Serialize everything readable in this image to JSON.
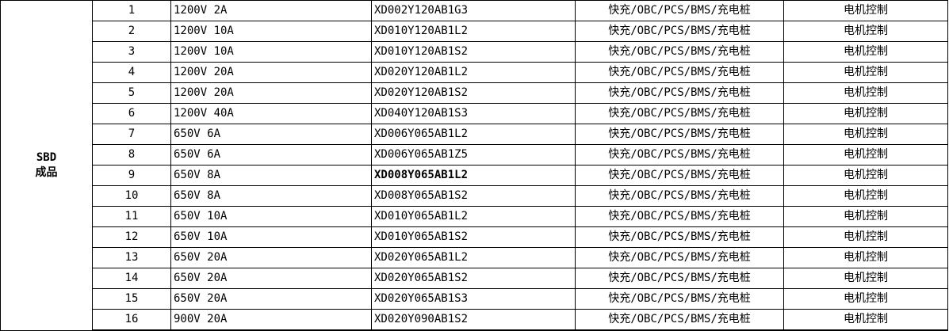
{
  "table": {
    "group": {
      "line1": "SBD",
      "line2": "成品"
    },
    "rows": [
      {
        "no": "1",
        "spec": "1200V 2A",
        "part": "XD002Y120AB1G3",
        "app": "快充/OBC/PCS/BMS/充电桩",
        "control": "电机控制",
        "part_bold": false
      },
      {
        "no": "2",
        "spec": "1200V 10A",
        "part": "XD010Y120AB1L2",
        "app": "快充/OBC/PCS/BMS/充电桩",
        "control": "电机控制",
        "part_bold": false
      },
      {
        "no": "3",
        "spec": "1200V 10A",
        "part": "XD010Y120AB1S2",
        "app": "快充/OBC/PCS/BMS/充电桩",
        "control": "电机控制",
        "part_bold": false
      },
      {
        "no": "4",
        "spec": "1200V 20A",
        "part": "XD020Y120AB1L2",
        "app": "快充/OBC/PCS/BMS/充电桩",
        "control": "电机控制",
        "part_bold": false
      },
      {
        "no": "5",
        "spec": "1200V 20A",
        "part": "XD020Y120AB1S2",
        "app": "快充/OBC/PCS/BMS/充电桩",
        "control": "电机控制",
        "part_bold": false
      },
      {
        "no": "6",
        "spec": "1200V 40A",
        "part": "XD040Y120AB1S3",
        "app": "快充/OBC/PCS/BMS/充电桩",
        "control": "电机控制",
        "part_bold": false
      },
      {
        "no": "7",
        "spec": "650V 6A",
        "part": "XD006Y065AB1L2",
        "app": "快充/OBC/PCS/BMS/充电桩",
        "control": "电机控制",
        "part_bold": false
      },
      {
        "no": "8",
        "spec": "650V 6A",
        "part": "XD006Y065AB1Z5",
        "app": "快充/OBC/PCS/BMS/充电桩",
        "control": "电机控制",
        "part_bold": false
      },
      {
        "no": "9",
        "spec": "650V 8A",
        "part": "XD008Y065AB1L2",
        "app": "快充/OBC/PCS/BMS/充电桩",
        "control": "电机控制",
        "part_bold": true
      },
      {
        "no": "10",
        "spec": "650V 8A",
        "part": "XD008Y065AB1S2",
        "app": "快充/OBC/PCS/BMS/充电桩",
        "control": "电机控制",
        "part_bold": false
      },
      {
        "no": "11",
        "spec": "650V 10A",
        "part": "XD010Y065AB1L2",
        "app": "快充/OBC/PCS/BMS/充电桩",
        "control": "电机控制",
        "part_bold": false
      },
      {
        "no": "12",
        "spec": "650V 10A",
        "part": "XD010Y065AB1S2",
        "app": "快充/OBC/PCS/BMS/充电桩",
        "control": "电机控制",
        "part_bold": false
      },
      {
        "no": "13",
        "spec": "650V 20A",
        "part": "XD020Y065AB1L2",
        "app": "快充/OBC/PCS/BMS/充电桩",
        "control": "电机控制",
        "part_bold": false
      },
      {
        "no": "14",
        "spec": "650V 20A",
        "part": "XD020Y065AB1S2",
        "app": "快充/OBC/PCS/BMS/充电桩",
        "control": "电机控制",
        "part_bold": false
      },
      {
        "no": "15",
        "spec": "650V 20A",
        "part": "XD020Y065AB1S3",
        "app": "快充/OBC/PCS/BMS/充电桩",
        "control": "电机控制",
        "part_bold": false
      },
      {
        "no": "16",
        "spec": "900V 20A",
        "part": "XD020Y090AB1S2",
        "app": "快充/OBC/PCS/BMS/充电桩",
        "control": "电机控制",
        "part_bold": false
      }
    ],
    "colors": {
      "border": "#000000",
      "text": "#000000",
      "background": "#ffffff"
    }
  }
}
